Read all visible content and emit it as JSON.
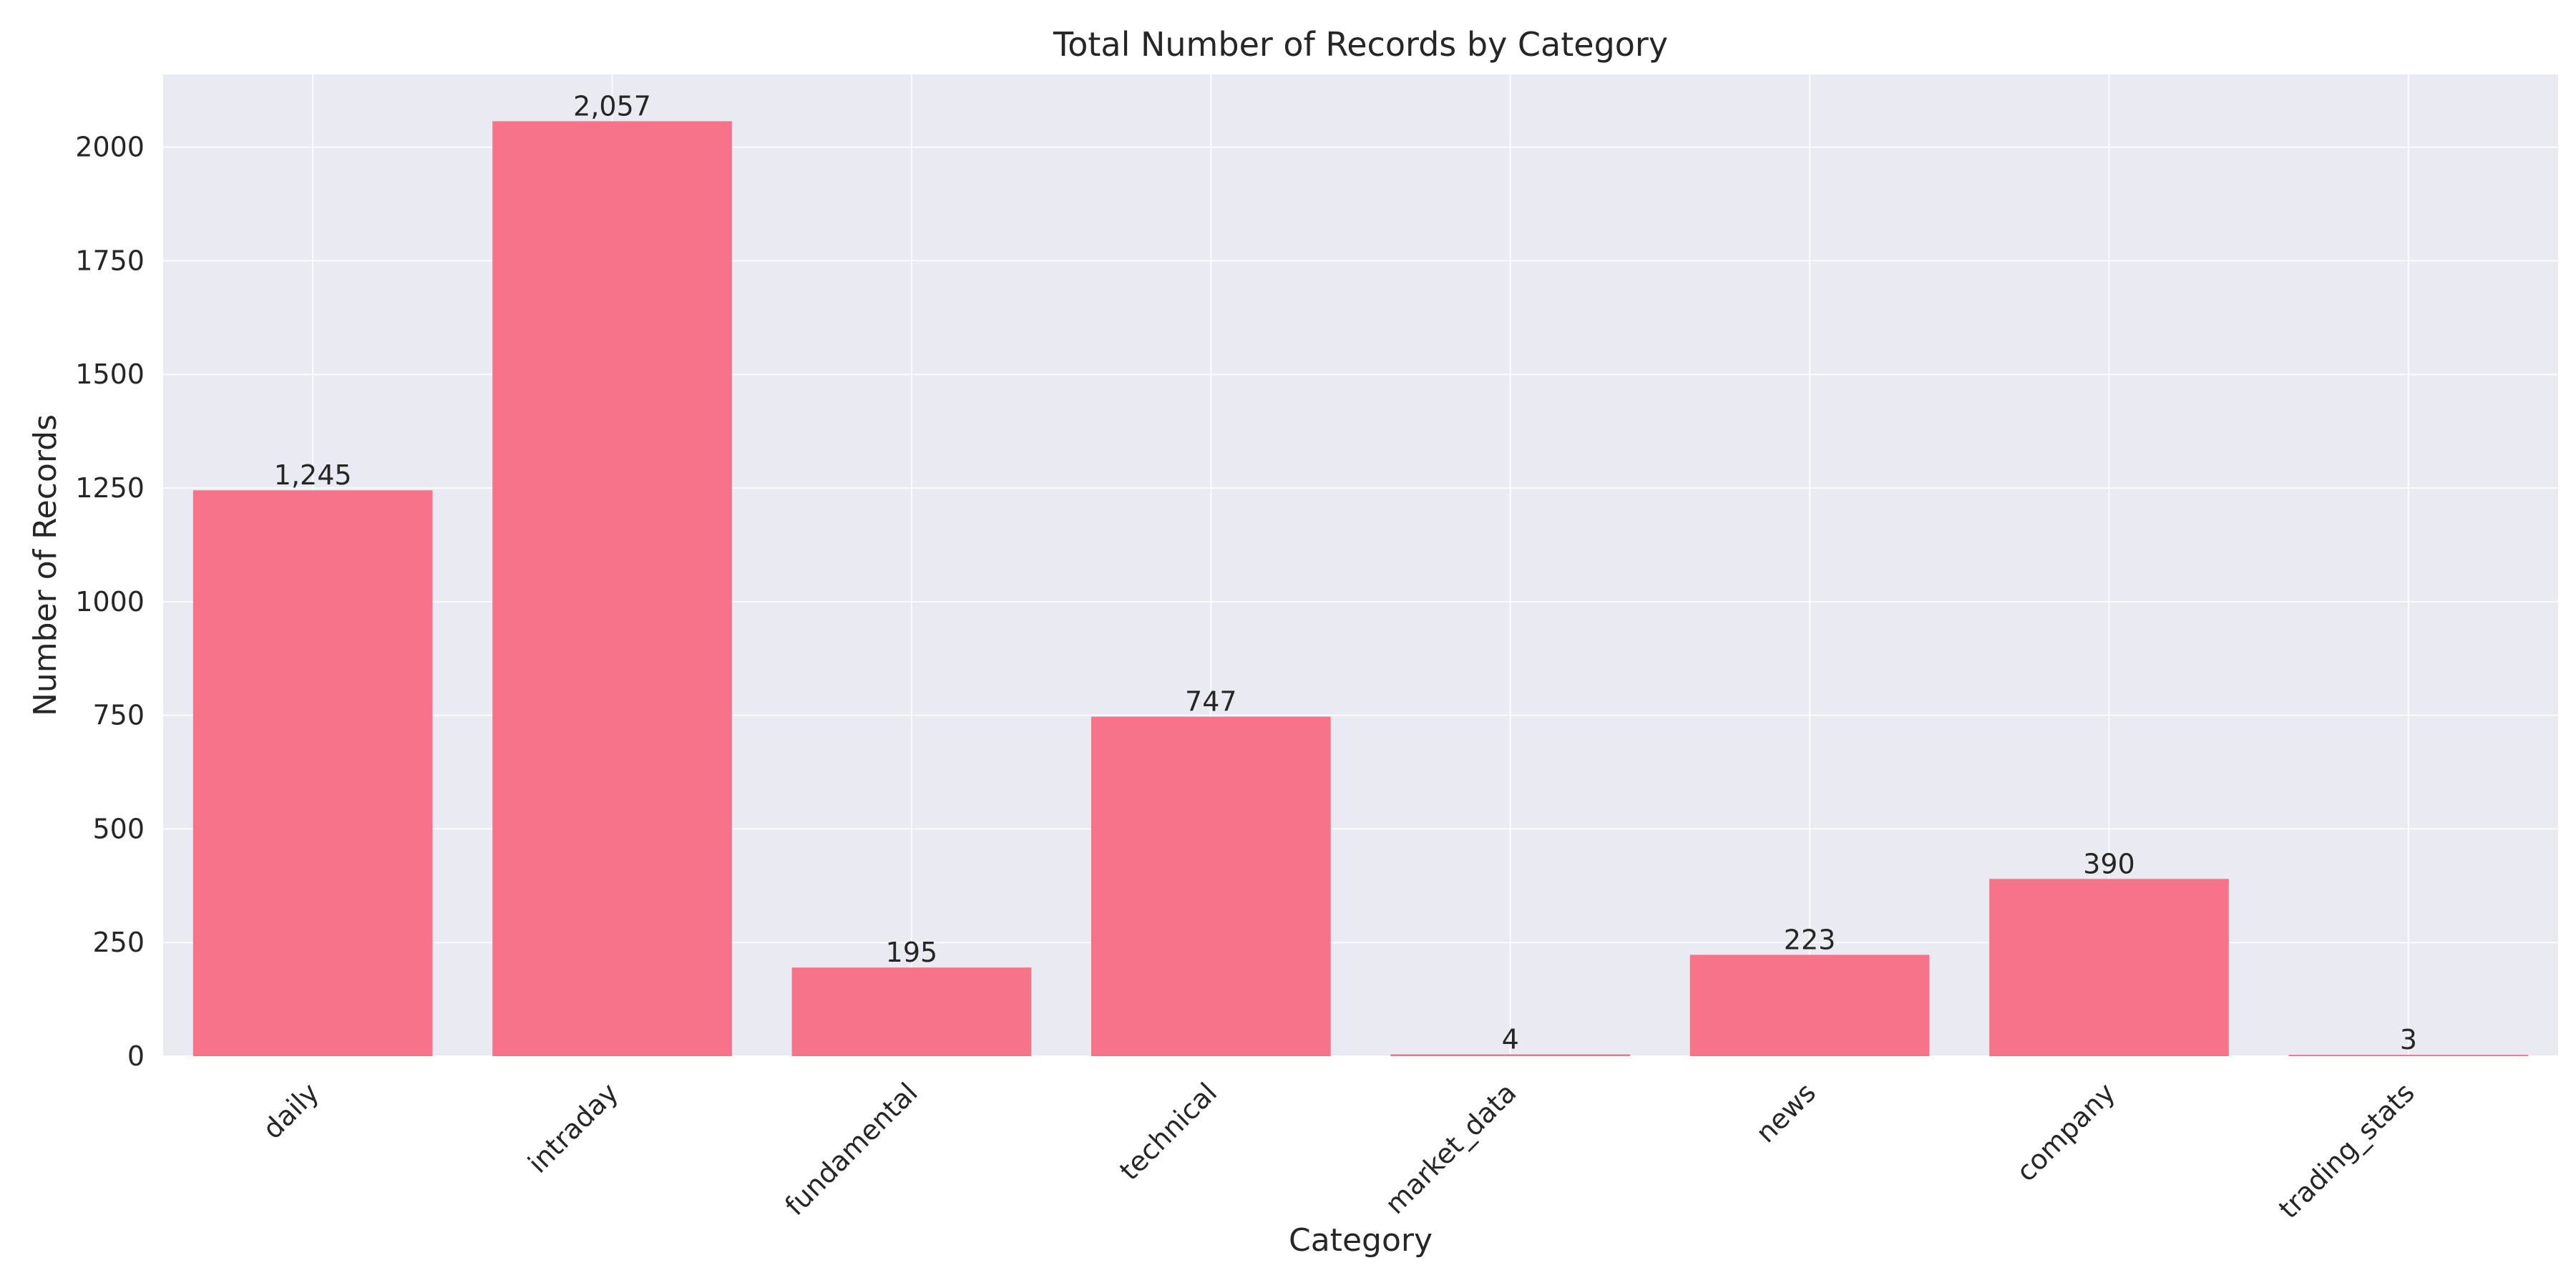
{
  "colors": {
    "bar": "#f7738a",
    "plot_bg": "#eaeaf2",
    "grid": "#ffffff",
    "text": "#262626"
  },
  "chart_data": {
    "type": "bar",
    "title": "Total Number of Records by Category",
    "xlabel": "Category",
    "ylabel": "Number of Records",
    "categories": [
      "daily",
      "intraday",
      "fundamental",
      "technical",
      "market_data",
      "news",
      "company",
      "trading_stats"
    ],
    "values": [
      1245,
      2057,
      195,
      747,
      4,
      223,
      390,
      3
    ],
    "value_labels": [
      "1,245",
      "2,057",
      "195",
      "747",
      "4",
      "223",
      "390",
      "3"
    ],
    "yticks": [
      0,
      250,
      500,
      750,
      1000,
      1250,
      1500,
      1750,
      2000
    ],
    "ylim": [
      0,
      2160
    ],
    "grid": true,
    "legend": "none"
  }
}
